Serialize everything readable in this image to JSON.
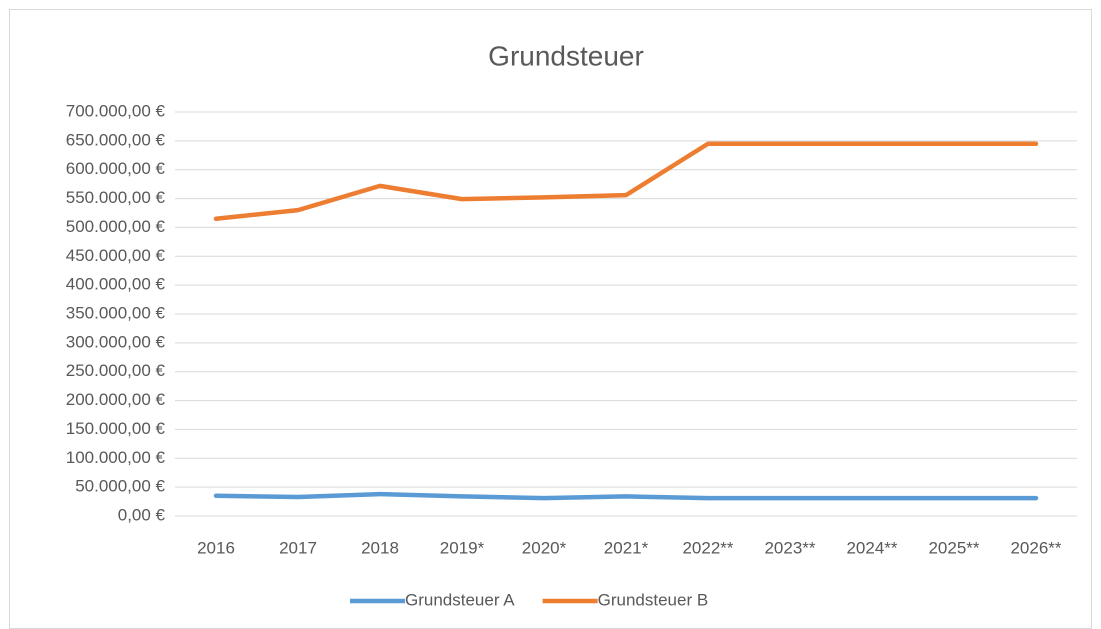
{
  "chart_data": {
    "type": "line",
    "title": "Grundsteuer",
    "categories": [
      "2016",
      "2017",
      "2018",
      "2019*",
      "2020*",
      "2021*",
      "2022**",
      "2023**",
      "2024**",
      "2025**",
      "2026**"
    ],
    "series": [
      {
        "name": "Grundsteuer A",
        "color": "#5b9bd5",
        "values": [
          35000,
          33000,
          38000,
          34000,
          31000,
          34000,
          31000,
          31000,
          31000,
          31000,
          31000
        ]
      },
      {
        "name": "Grundsteuer B",
        "color": "#ed7d31",
        "values": [
          515000,
          530000,
          572000,
          549000,
          552000,
          556000,
          645000,
          645000,
          645000,
          645000,
          645000
        ]
      }
    ],
    "ylim": [
      0,
      700000
    ],
    "yticks": [
      {
        "value": 0,
        "label": "0,00 €"
      },
      {
        "value": 50000,
        "label": "50.000,00 €"
      },
      {
        "value": 100000,
        "label": "100.000,00 €"
      },
      {
        "value": 150000,
        "label": "150.000,00 €"
      },
      {
        "value": 200000,
        "label": "200.000,00 €"
      },
      {
        "value": 250000,
        "label": "250.000,00 €"
      },
      {
        "value": 300000,
        "label": "300.000,00 €"
      },
      {
        "value": 350000,
        "label": "350.000,00 €"
      },
      {
        "value": 400000,
        "label": "400.000,00 €"
      },
      {
        "value": 450000,
        "label": "450.000,00 €"
      },
      {
        "value": 500000,
        "label": "500.000,00 €"
      },
      {
        "value": 550000,
        "label": "550.000,00 €"
      },
      {
        "value": 600000,
        "label": "600.000,00 €"
      },
      {
        "value": 650000,
        "label": "650.000,00 €"
      },
      {
        "value": 700000,
        "label": "700.000,00 €"
      }
    ],
    "grid": true,
    "legend": "bottom"
  }
}
